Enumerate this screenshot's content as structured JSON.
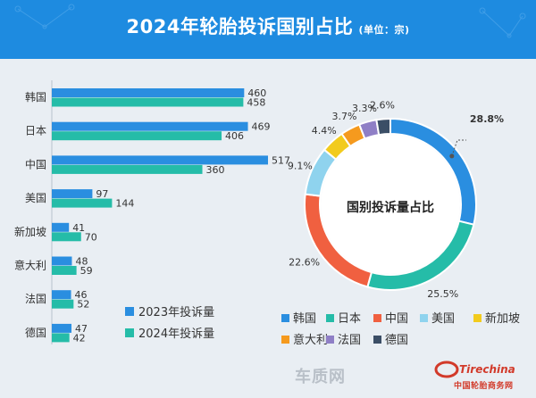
{
  "header": {
    "title": "2024年轮胎投诉国别占比",
    "unit": "(单位：宗)"
  },
  "colors": {
    "header_bg": "#1e8be0",
    "panel_bg": "#e9eef3",
    "series_2023": "#2a8ee0",
    "series_2024": "#25bca8"
  },
  "chart_data": [
    {
      "type": "bar",
      "orientation": "horizontal",
      "categories": [
        "韩国",
        "日本",
        "中国",
        "美国",
        "新加坡",
        "意大利",
        "法国",
        "德国"
      ],
      "series": [
        {
          "name": "2023年投诉量",
          "values": [
            460,
            469,
            517,
            97,
            41,
            48,
            46,
            47
          ],
          "color": "#2a8ee0"
        },
        {
          "name": "2024年投诉量",
          "values": [
            458,
            406,
            360,
            144,
            70,
            59,
            52,
            42
          ],
          "color": "#25bca8"
        }
      ],
      "xlim": [
        0,
        517
      ],
      "grid": false,
      "legend": "bottom-right"
    },
    {
      "type": "pie",
      "style": "donut",
      "center_label": "国别投诉量占比",
      "slices": [
        {
          "label": "韩国",
          "value": 28.8,
          "display": "28.8%",
          "color": "#2a8ee0"
        },
        {
          "label": "日本",
          "value": 25.5,
          "display": "25.5%",
          "color": "#25bca8"
        },
        {
          "label": "中国",
          "value": 22.6,
          "display": "22.6%",
          "color": "#f06040"
        },
        {
          "label": "美国",
          "value": 9.1,
          "display": "9.1%",
          "color": "#8fd3ee"
        },
        {
          "label": "新加坡",
          "value": 4.4,
          "display": "4.4%",
          "color": "#f2cb1d"
        },
        {
          "label": "意大利",
          "value": 3.7,
          "display": "3.7%",
          "color": "#f59a1e"
        },
        {
          "label": "法国",
          "value": 3.3,
          "display": "3.3%",
          "color": "#8f7fc6"
        },
        {
          "label": "德国",
          "value": 2.6,
          "display": "2.6%",
          "color": "#3b4e66"
        }
      ],
      "legend": "bottom"
    }
  ],
  "watermark": {
    "text": "车质网",
    "brand": "Tirechina",
    "site": "中国轮胎商务网"
  }
}
